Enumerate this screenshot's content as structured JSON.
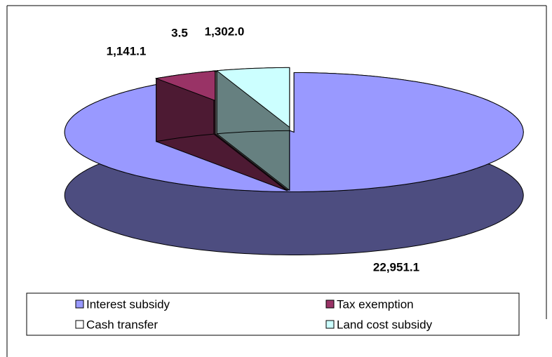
{
  "chart_data": {
    "type": "pie",
    "categories": [
      "Interest subsidy",
      "Tax exemption",
      "Cash transfer",
      "Land cost subsidy"
    ],
    "values": [
      22951.1,
      1141.1,
      3.5,
      1302.0
    ],
    "value_labels": [
      "22,951.1",
      "1,141.1",
      "3.5",
      "1,302.0"
    ],
    "colors": [
      "#9999ff",
      "#993366",
      "#ffffff",
      "#ccffff"
    ],
    "legend": "bottom"
  }
}
